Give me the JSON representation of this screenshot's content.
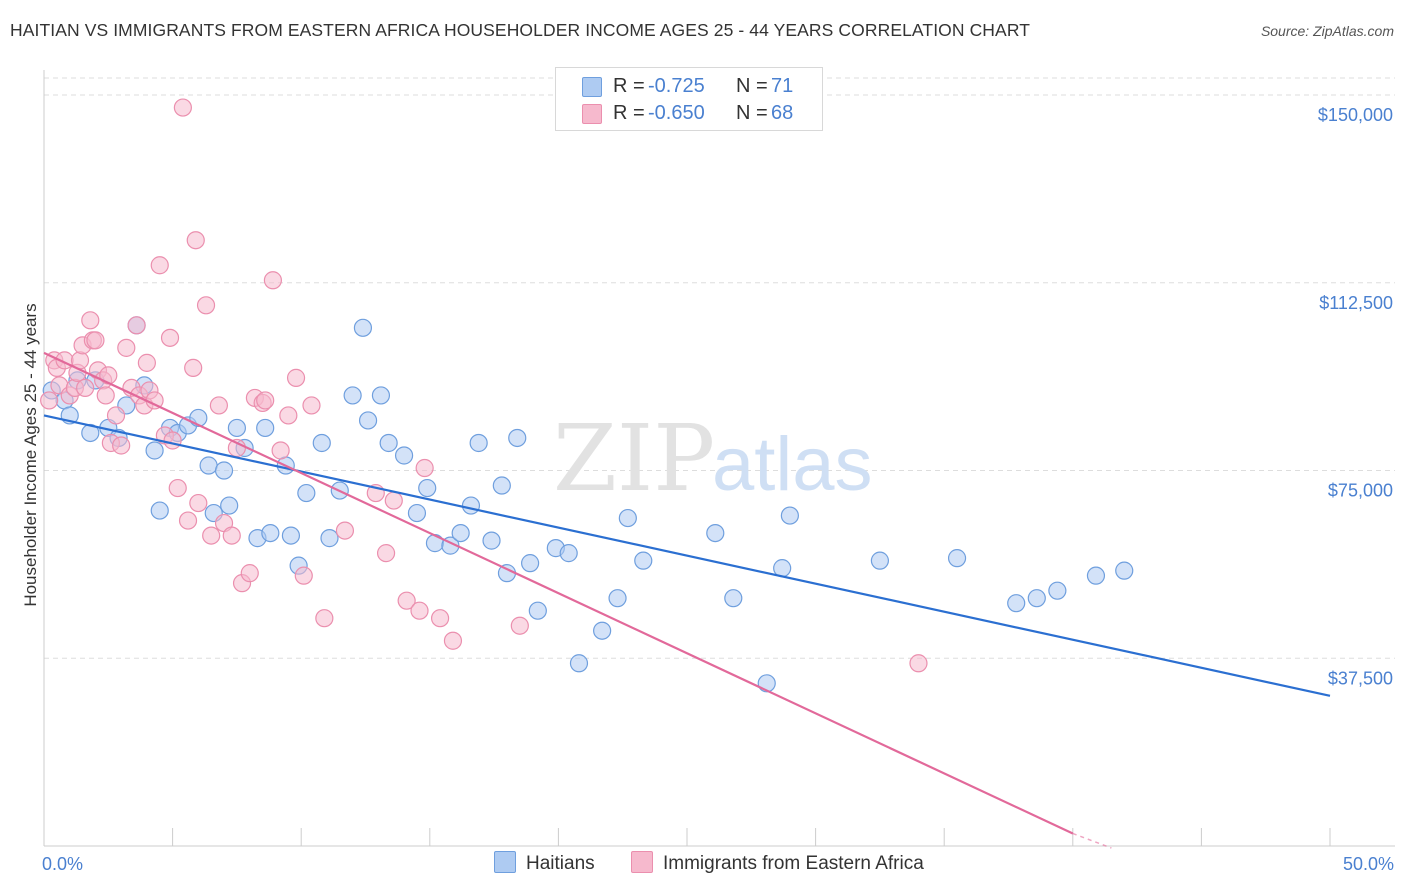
{
  "title": "HAITIAN VS IMMIGRANTS FROM EASTERN AFRICA HOUSEHOLDER INCOME AGES 25 - 44 YEARS CORRELATION CHART",
  "source": "Source: ZipAtlas.com",
  "watermark": {
    "zip": "ZIP",
    "atlas": "atlas"
  },
  "legend": {
    "series1": {
      "r_label": "R = ",
      "r_value": "-0.725",
      "n_label": "N = ",
      "n_value": "71"
    },
    "series2": {
      "r_label": "R = ",
      "r_value": "-0.650",
      "n_label": "N = ",
      "n_value": "68"
    }
  },
  "colors": {
    "blue_fill": "#aecbf2",
    "blue_stroke": "#6f9fde",
    "blue_line": "#2b6fd1",
    "pink_fill": "#f6b9cd",
    "pink_stroke": "#eb8fae",
    "pink_line": "#e2699a",
    "axis_text": "#4a80d0",
    "grid": "#dddddd"
  },
  "chart_data": {
    "type": "scatter",
    "title": "HAITIAN VS IMMIGRANTS FROM EASTERN AFRICA HOUSEHOLDER INCOME AGES 25 - 44 YEARS CORRELATION CHART",
    "ylabel": "Householder Income Ages 25 - 44 years",
    "xlabel": "",
    "x_tick_labels": [
      "0.0%",
      "50.0%"
    ],
    "xlim": [
      0,
      50
    ],
    "ylim": [
      0,
      155000
    ],
    "y_ticks": [
      {
        "value": 150000,
        "label": "$150,000"
      },
      {
        "value": 112500,
        "label": "$112,500"
      },
      {
        "value": 75000,
        "label": "$75,000"
      },
      {
        "value": 37500,
        "label": "$37,500"
      }
    ],
    "grid": true,
    "legend_position": "top-center",
    "series": [
      {
        "name": "Haitians",
        "color": "#6f9fde",
        "trend": {
          "x": [
            0,
            50
          ],
          "y": [
            86000,
            30000
          ]
        },
        "points": [
          [
            0.3,
            91000
          ],
          [
            0.8,
            89000
          ],
          [
            1.0,
            86000
          ],
          [
            1.3,
            93000
          ],
          [
            1.8,
            82500
          ],
          [
            2.0,
            93000
          ],
          [
            2.5,
            83500
          ],
          [
            2.9,
            81500
          ],
          [
            3.2,
            88000
          ],
          [
            3.6,
            104000
          ],
          [
            3.9,
            92000
          ],
          [
            4.3,
            79000
          ],
          [
            4.5,
            67000
          ],
          [
            4.9,
            83500
          ],
          [
            5.2,
            82500
          ],
          [
            5.6,
            84000
          ],
          [
            6.0,
            85500
          ],
          [
            6.4,
            76000
          ],
          [
            6.6,
            66500
          ],
          [
            7.0,
            75000
          ],
          [
            7.2,
            68000
          ],
          [
            7.5,
            83500
          ],
          [
            7.8,
            79500
          ],
          [
            8.3,
            61500
          ],
          [
            8.6,
            83500
          ],
          [
            8.8,
            62500
          ],
          [
            9.4,
            76000
          ],
          [
            9.6,
            62000
          ],
          [
            9.9,
            56000
          ],
          [
            10.2,
            70500
          ],
          [
            10.8,
            80500
          ],
          [
            11.1,
            61500
          ],
          [
            11.5,
            71000
          ],
          [
            12.0,
            90000
          ],
          [
            12.4,
            103500
          ],
          [
            12.6,
            85000
          ],
          [
            13.1,
            90000
          ],
          [
            13.4,
            80500
          ],
          [
            14.0,
            78000
          ],
          [
            14.5,
            66500
          ],
          [
            14.9,
            71500
          ],
          [
            15.2,
            60500
          ],
          [
            15.8,
            60000
          ],
          [
            16.2,
            62500
          ],
          [
            16.6,
            68000
          ],
          [
            16.9,
            80500
          ],
          [
            17.4,
            61000
          ],
          [
            17.8,
            72000
          ],
          [
            18.0,
            54500
          ],
          [
            18.4,
            81500
          ],
          [
            18.9,
            56500
          ],
          [
            19.2,
            47000
          ],
          [
            19.9,
            59500
          ],
          [
            20.4,
            58500
          ],
          [
            20.8,
            36500
          ],
          [
            21.7,
            43000
          ],
          [
            22.3,
            49500
          ],
          [
            22.7,
            65500
          ],
          [
            23.3,
            57000
          ],
          [
            26.1,
            62500
          ],
          [
            26.8,
            49500
          ],
          [
            28.1,
            32500
          ],
          [
            28.7,
            55500
          ],
          [
            29.0,
            66000
          ],
          [
            32.5,
            57000
          ],
          [
            35.5,
            57500
          ],
          [
            37.8,
            48500
          ],
          [
            38.6,
            49500
          ],
          [
            39.4,
            51000
          ],
          [
            40.9,
            54000
          ],
          [
            42.0,
            55000
          ]
        ]
      },
      {
        "name": "Immigrants from Eastern Africa",
        "color": "#eb8fae",
        "trend": {
          "x": [
            0,
            40
          ],
          "y": [
            98500,
            2500
          ]
        },
        "dashed_extension": {
          "x": [
            40,
            41.5
          ],
          "y": [
            2500,
            -1000
          ]
        },
        "points": [
          [
            0.2,
            89000
          ],
          [
            0.4,
            97000
          ],
          [
            0.5,
            95500
          ],
          [
            0.6,
            92000
          ],
          [
            0.8,
            97000
          ],
          [
            1.0,
            90000
          ],
          [
            1.2,
            91500
          ],
          [
            1.3,
            94500
          ],
          [
            1.4,
            97000
          ],
          [
            1.5,
            100000
          ],
          [
            1.6,
            91500
          ],
          [
            1.8,
            105000
          ],
          [
            1.9,
            101000
          ],
          [
            2.0,
            101000
          ],
          [
            2.1,
            95000
          ],
          [
            2.3,
            93000
          ],
          [
            2.4,
            90000
          ],
          [
            2.5,
            94000
          ],
          [
            2.6,
            80500
          ],
          [
            2.8,
            86000
          ],
          [
            3.0,
            80000
          ],
          [
            3.2,
            99500
          ],
          [
            3.4,
            91500
          ],
          [
            3.6,
            104000
          ],
          [
            3.7,
            90000
          ],
          [
            3.9,
            88000
          ],
          [
            4.0,
            96500
          ],
          [
            4.1,
            91000
          ],
          [
            4.3,
            89000
          ],
          [
            4.5,
            116000
          ],
          [
            4.7,
            82000
          ],
          [
            4.9,
            101500
          ],
          [
            5.0,
            81000
          ],
          [
            5.2,
            71500
          ],
          [
            5.4,
            147500
          ],
          [
            5.6,
            65000
          ],
          [
            5.8,
            95500
          ],
          [
            5.9,
            121000
          ],
          [
            6.0,
            68500
          ],
          [
            6.3,
            108000
          ],
          [
            6.5,
            62000
          ],
          [
            6.8,
            88000
          ],
          [
            7.0,
            64500
          ],
          [
            7.3,
            62000
          ],
          [
            7.5,
            79500
          ],
          [
            7.7,
            52500
          ],
          [
            8.0,
            54500
          ],
          [
            8.2,
            89500
          ],
          [
            8.5,
            88500
          ],
          [
            8.6,
            89000
          ],
          [
            8.9,
            113000
          ],
          [
            9.2,
            79000
          ],
          [
            9.5,
            86000
          ],
          [
            9.8,
            93500
          ],
          [
            10.1,
            54000
          ],
          [
            10.4,
            88000
          ],
          [
            10.9,
            45500
          ],
          [
            11.7,
            63000
          ],
          [
            12.9,
            70500
          ],
          [
            13.3,
            58500
          ],
          [
            13.6,
            69000
          ],
          [
            14.1,
            49000
          ],
          [
            14.6,
            47000
          ],
          [
            14.8,
            75500
          ],
          [
            15.4,
            45500
          ],
          [
            15.9,
            41000
          ],
          [
            18.5,
            44000
          ],
          [
            34.0,
            36500
          ]
        ]
      }
    ]
  }
}
